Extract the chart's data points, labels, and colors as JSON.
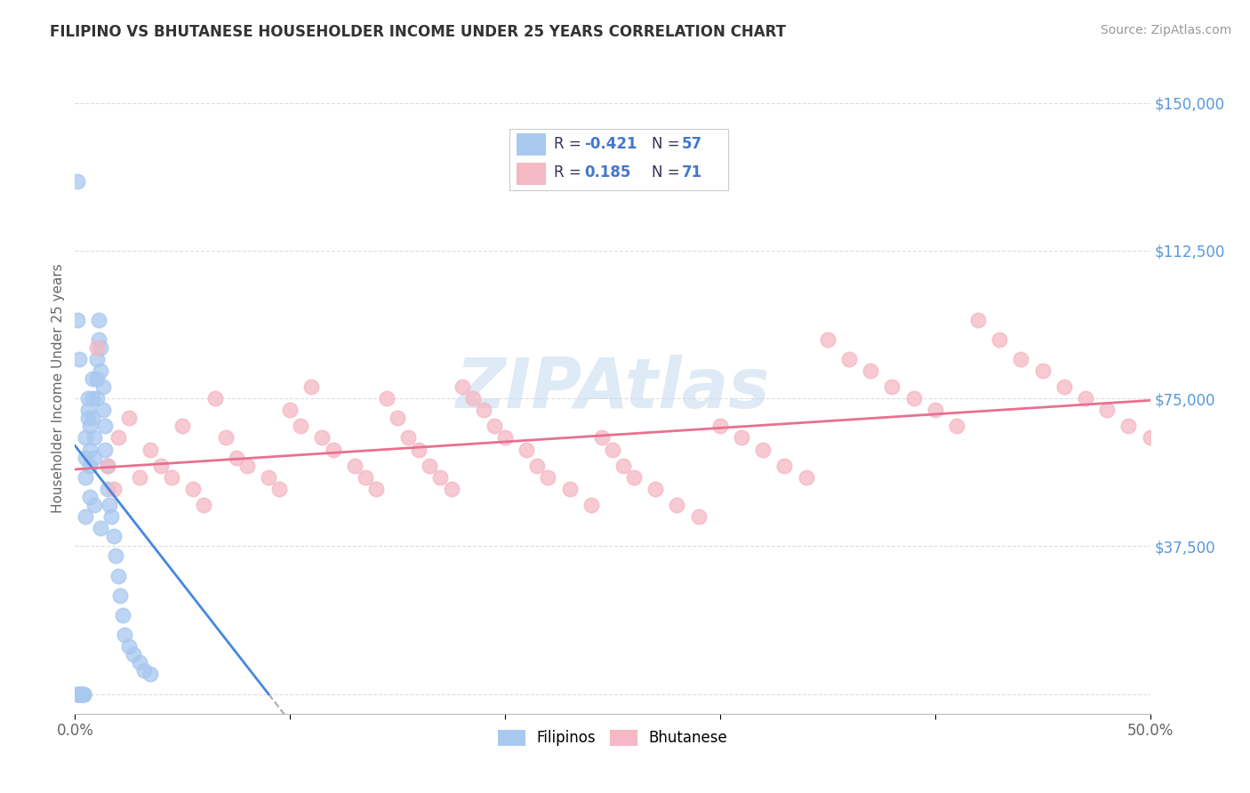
{
  "title": "FILIPINO VS BHUTANESE HOUSEHOLDER INCOME UNDER 25 YEARS CORRELATION CHART",
  "source": "Source: ZipAtlas.com",
  "ylabel": "Householder Income Under 25 years",
  "xmin": 0.0,
  "xmax": 0.5,
  "ymin": -5000,
  "ymax": 160000,
  "ytick_vals": [
    0,
    37500,
    75000,
    112500,
    150000
  ],
  "ytick_labels": [
    "",
    "$37,500",
    "$75,000",
    "$112,500",
    "$150,000"
  ],
  "filipino_R": -0.421,
  "filipino_N": 57,
  "bhutanese_R": 0.185,
  "bhutanese_N": 71,
  "filipino_color": "#A8C8F0",
  "bhutanese_color": "#F5B8C4",
  "filipino_line_color": "#4488DD",
  "bhutanese_line_color": "#E87090",
  "background_color": "#FFFFFF",
  "grid_color": "#DDDDDD",
  "ytick_color": "#5599DD",
  "watermark_color": "#C8DCF0",
  "legend_r_color": "#4477CC",
  "legend_n_color": "#333355",
  "filipino_scatter_x": [
    0.001,
    0.001,
    0.002,
    0.002,
    0.003,
    0.003,
    0.003,
    0.004,
    0.004,
    0.004,
    0.005,
    0.005,
    0.005,
    0.006,
    0.006,
    0.006,
    0.007,
    0.007,
    0.007,
    0.008,
    0.008,
    0.008,
    0.009,
    0.009,
    0.01,
    0.01,
    0.01,
    0.011,
    0.011,
    0.012,
    0.012,
    0.013,
    0.013,
    0.014,
    0.014,
    0.015,
    0.015,
    0.016,
    0.017,
    0.018,
    0.019,
    0.02,
    0.021,
    0.022,
    0.023,
    0.025,
    0.027,
    0.03,
    0.032,
    0.035,
    0.001,
    0.001,
    0.002,
    0.005,
    0.007,
    0.009,
    0.012
  ],
  "filipino_scatter_y": [
    0,
    0,
    0,
    0,
    0,
    0,
    0,
    0,
    0,
    0,
    55000,
    60000,
    65000,
    70000,
    72000,
    75000,
    68000,
    62000,
    58000,
    80000,
    75000,
    70000,
    65000,
    60000,
    85000,
    80000,
    75000,
    90000,
    95000,
    88000,
    82000,
    78000,
    72000,
    68000,
    62000,
    58000,
    52000,
    48000,
    45000,
    40000,
    35000,
    30000,
    25000,
    20000,
    15000,
    12000,
    10000,
    8000,
    6000,
    5000,
    130000,
    95000,
    85000,
    45000,
    50000,
    48000,
    42000
  ],
  "bhutanese_scatter_x": [
    0.01,
    0.015,
    0.018,
    0.02,
    0.025,
    0.03,
    0.035,
    0.04,
    0.045,
    0.05,
    0.055,
    0.06,
    0.065,
    0.07,
    0.075,
    0.08,
    0.09,
    0.095,
    0.1,
    0.105,
    0.11,
    0.115,
    0.12,
    0.13,
    0.135,
    0.14,
    0.145,
    0.15,
    0.155,
    0.16,
    0.165,
    0.17,
    0.175,
    0.18,
    0.185,
    0.19,
    0.195,
    0.2,
    0.21,
    0.215,
    0.22,
    0.23,
    0.24,
    0.245,
    0.25,
    0.255,
    0.26,
    0.27,
    0.28,
    0.29,
    0.3,
    0.31,
    0.32,
    0.33,
    0.34,
    0.35,
    0.36,
    0.37,
    0.38,
    0.39,
    0.4,
    0.41,
    0.42,
    0.43,
    0.44,
    0.45,
    0.46,
    0.47,
    0.48,
    0.49,
    0.5
  ],
  "bhutanese_scatter_y": [
    88000,
    58000,
    52000,
    65000,
    70000,
    55000,
    62000,
    58000,
    55000,
    68000,
    52000,
    48000,
    75000,
    65000,
    60000,
    58000,
    55000,
    52000,
    72000,
    68000,
    78000,
    65000,
    62000,
    58000,
    55000,
    52000,
    75000,
    70000,
    65000,
    62000,
    58000,
    55000,
    52000,
    78000,
    75000,
    72000,
    68000,
    65000,
    62000,
    58000,
    55000,
    52000,
    48000,
    65000,
    62000,
    58000,
    55000,
    52000,
    48000,
    45000,
    68000,
    65000,
    62000,
    58000,
    55000,
    90000,
    85000,
    82000,
    78000,
    75000,
    72000,
    68000,
    95000,
    90000,
    85000,
    82000,
    78000,
    75000,
    72000,
    68000,
    65000
  ]
}
